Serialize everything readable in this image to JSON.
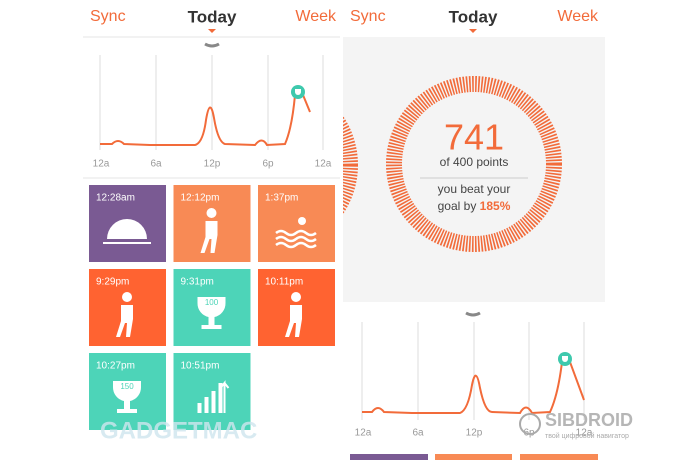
{
  "screens": [
    {
      "nav": {
        "left": "Sync",
        "center": "Today",
        "right": "Week"
      },
      "chart_labels": [
        "12a",
        "6a",
        "12p",
        "6p",
        "12a"
      ],
      "tiles": [
        {
          "time": "12:28am"
        },
        {
          "time": "12:12pm"
        },
        {
          "time": "1:37pm"
        },
        {
          "time": "9:29pm"
        },
        {
          "time": "9:31pm",
          "badge": "100"
        },
        {
          "time": "10:11pm"
        },
        {
          "time": "10:27pm",
          "badge": "150"
        },
        {
          "time": "10:51pm"
        }
      ]
    },
    {
      "nav": {
        "left": "Sync",
        "center": "Today",
        "right": "Week"
      },
      "summary": {
        "points": "741",
        "of": "of 400 points",
        "beat": "you beat your",
        "goal": "goal by",
        "percent": "185%"
      },
      "chart_labels": [
        "12a",
        "6a",
        "12p",
        "6p",
        "12a"
      ]
    }
  ],
  "watermarks": [
    "GADGETMAC",
    "SIBDROID",
    "твой цифровой навигатор"
  ]
}
